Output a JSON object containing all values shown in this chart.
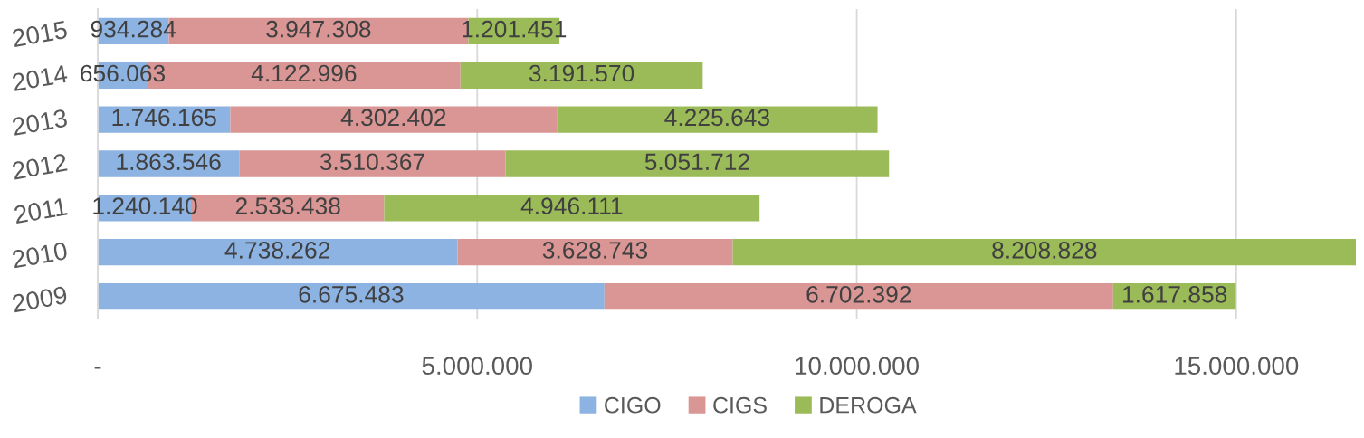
{
  "chart_data": {
    "type": "bar",
    "orientation": "horizontal",
    "stacked": true,
    "categories": [
      "2015",
      "2014",
      "2013",
      "2012",
      "2011",
      "2010",
      "2009"
    ],
    "series": [
      {
        "name": "CIGO",
        "color": "#8db3e2",
        "values": [
          934284,
          656063,
          1746165,
          1863546,
          1240140,
          4738262,
          6675483
        ],
        "value_labels": [
          "934.284",
          "656.063",
          "1.746.165",
          "1.863.546",
          "1.240.140",
          "4.738.262",
          "6.675.483"
        ]
      },
      {
        "name": "CIGS",
        "color": "#d99694",
        "values": [
          3947308,
          4122996,
          4302402,
          3510367,
          2533438,
          3628743,
          6702392
        ],
        "value_labels": [
          "3.947.308",
          "4.122.996",
          "4.302.402",
          "3.510.367",
          "2.533.438",
          "3.628.743",
          "6.702.392"
        ]
      },
      {
        "name": "DEROGA",
        "color": "#9bbb59",
        "values": [
          1201451,
          3191570,
          4225643,
          5051712,
          4946111,
          8208828,
          1617858
        ],
        "value_labels": [
          "1.201.451",
          "3.191.570",
          "4.225.643",
          "5.051.712",
          "4.946.111",
          "8.208.828",
          "1.617.858"
        ]
      }
    ],
    "xlim": [
      0,
      16600000
    ],
    "xticks": [
      {
        "value": 0,
        "label": "-"
      },
      {
        "value": 5000000,
        "label": "5.000.000"
      },
      {
        "value": 10000000,
        "label": "10.000.000"
      },
      {
        "value": 15000000,
        "label": "15.000.000"
      }
    ],
    "grid": "x",
    "legend": "bottom"
  }
}
